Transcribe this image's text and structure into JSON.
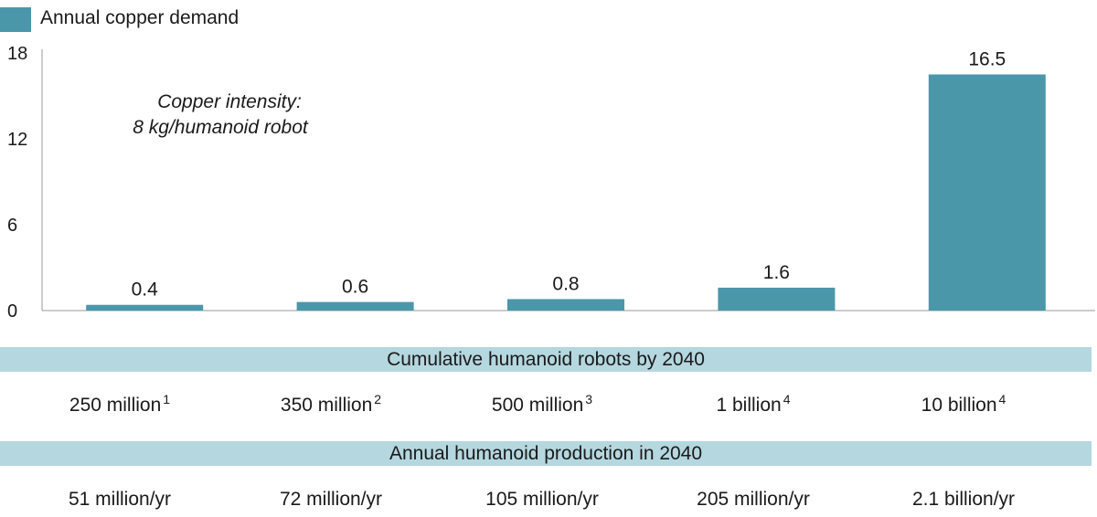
{
  "legend": {
    "label": "Annual copper demand",
    "color": "#4a97aa"
  },
  "annotation": {
    "line1": "Copper intensity:",
    "line2": "8 kg/humanoid robot"
  },
  "chart_data": {
    "type": "bar",
    "title": "",
    "xlabel": "",
    "ylabel": "",
    "ylim": [
      0,
      18
    ],
    "yticks": [
      0,
      6,
      12,
      18
    ],
    "categories": [
      "250 million",
      "350 million",
      "500 million",
      "1 billion",
      "10 billion"
    ],
    "series": [
      {
        "name": "Annual copper demand",
        "values": [
          0.4,
          0.6,
          0.8,
          1.6,
          16.5
        ],
        "labels": [
          "0.4",
          "0.6",
          "0.8",
          "1.6",
          "16.5"
        ]
      }
    ],
    "bar_color": "#4a97aa"
  },
  "table": {
    "cumulative_header": "Cumulative humanoid robots by 2040",
    "cumulative": [
      {
        "value": "250 million",
        "note": "1"
      },
      {
        "value": "350 million",
        "note": "2"
      },
      {
        "value": "500 million",
        "note": "3"
      },
      {
        "value": "1 billion",
        "note": "4"
      },
      {
        "value": "10 billion",
        "note": "4"
      }
    ],
    "production_header": "Annual humanoid production in 2040",
    "production": [
      "51 million/yr",
      "72 million/yr",
      "105 million/yr",
      "205 million/yr",
      "2.1 billion/yr"
    ]
  },
  "colors": {
    "band": "#b5d7df",
    "bar": "#4a97aa"
  }
}
